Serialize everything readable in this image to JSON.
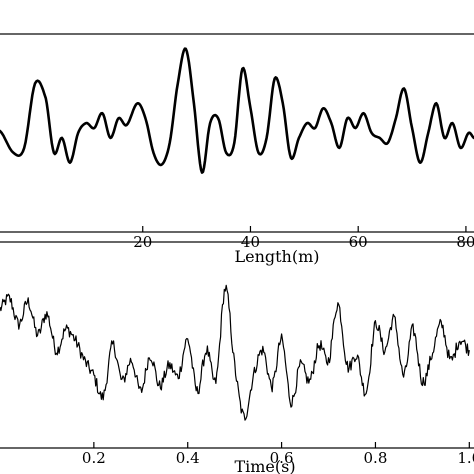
{
  "chart_data": [
    {
      "type": "line",
      "xlabel": "Length(m)",
      "ylabel": "",
      "title": "",
      "xlim": [
        -6.5,
        81.5
      ],
      "ylim": [
        -1.0,
        1.0
      ],
      "xticks": [
        20,
        40,
        60,
        80
      ],
      "xtick_labels": [
        "20",
        "40",
        "60",
        "80"
      ],
      "series": [
        {
          "x": [
            -6.5,
            -4,
            -2,
            0,
            2,
            3.5,
            5,
            6.5,
            8,
            9.5,
            11,
            12.5,
            14,
            15.5,
            17,
            19,
            20.5,
            22,
            23.5,
            25,
            26.5,
            28,
            29.5,
            31,
            32.5,
            34,
            35.5,
            37,
            38.5,
            40,
            41.5,
            43,
            44.5,
            46,
            47.5,
            49,
            50.5,
            52,
            53.5,
            55,
            56.5,
            58,
            59.5,
            61,
            62.5,
            64,
            65.5,
            67,
            68.5,
            70,
            71.5,
            73,
            74.5,
            76,
            77.5,
            79,
            80.5,
            81.5
          ],
          "y": [
            0.02,
            -0.2,
            -0.15,
            0.5,
            0.35,
            -0.2,
            -0.05,
            -0.3,
            0.0,
            0.1,
            0.05,
            0.2,
            -0.05,
            0.15,
            0.08,
            0.3,
            0.15,
            -0.2,
            -0.32,
            -0.1,
            0.5,
            0.85,
            0.3,
            -0.4,
            0.1,
            0.15,
            -0.2,
            -0.1,
            0.65,
            0.25,
            -0.2,
            -0.05,
            0.55,
            0.3,
            -0.25,
            -0.05,
            0.1,
            0.05,
            0.25,
            0.1,
            -0.15,
            0.15,
            0.05,
            0.2,
            0.0,
            -0.05,
            -0.1,
            0.15,
            0.45,
            0.05,
            -0.3,
            0.0,
            0.3,
            -0.05,
            0.1,
            -0.15,
            0.0,
            -0.05
          ]
        }
      ]
    },
    {
      "type": "line",
      "xlabel": "Time(s)",
      "ylabel": "",
      "title": "",
      "xlim": [
        0.0,
        1.01
      ],
      "ylim": [
        -1.0,
        1.0
      ],
      "xticks": [
        0.2,
        0.4,
        0.6,
        0.8,
        1.0
      ],
      "xtick_labels": [
        "0.2",
        "0.4",
        "0.6",
        "0.8",
        "1.0"
      ],
      "series": [
        {
          "x": [
            0.0,
            0.02,
            0.04,
            0.06,
            0.08,
            0.1,
            0.12,
            0.14,
            0.16,
            0.18,
            0.2,
            0.22,
            0.24,
            0.26,
            0.28,
            0.3,
            0.32,
            0.34,
            0.36,
            0.38,
            0.4,
            0.42,
            0.44,
            0.46,
            0.48,
            0.5,
            0.52,
            0.54,
            0.56,
            0.58,
            0.6,
            0.62,
            0.64,
            0.66,
            0.68,
            0.7,
            0.72,
            0.74,
            0.76,
            0.78,
            0.8,
            0.82,
            0.84,
            0.86,
            0.88,
            0.9,
            0.92,
            0.94,
            0.96,
            0.98,
            1.0
          ],
          "y": [
            0.35,
            0.45,
            0.2,
            0.42,
            0.1,
            0.3,
            -0.05,
            0.15,
            0.05,
            -0.15,
            -0.3,
            -0.5,
            0.0,
            -0.35,
            -0.15,
            -0.45,
            -0.1,
            -0.4,
            -0.2,
            -0.3,
            0.05,
            -0.45,
            -0.05,
            -0.35,
            0.55,
            -0.2,
            -0.7,
            -0.3,
            -0.05,
            -0.4,
            0.05,
            -0.55,
            -0.2,
            -0.35,
            0.0,
            -0.15,
            0.4,
            -0.2,
            -0.1,
            -0.45,
            0.2,
            -0.05,
            0.25,
            -0.3,
            0.15,
            -0.35,
            -0.1,
            0.2,
            -0.15,
            0.05,
            -0.05
          ]
        }
      ]
    }
  ]
}
